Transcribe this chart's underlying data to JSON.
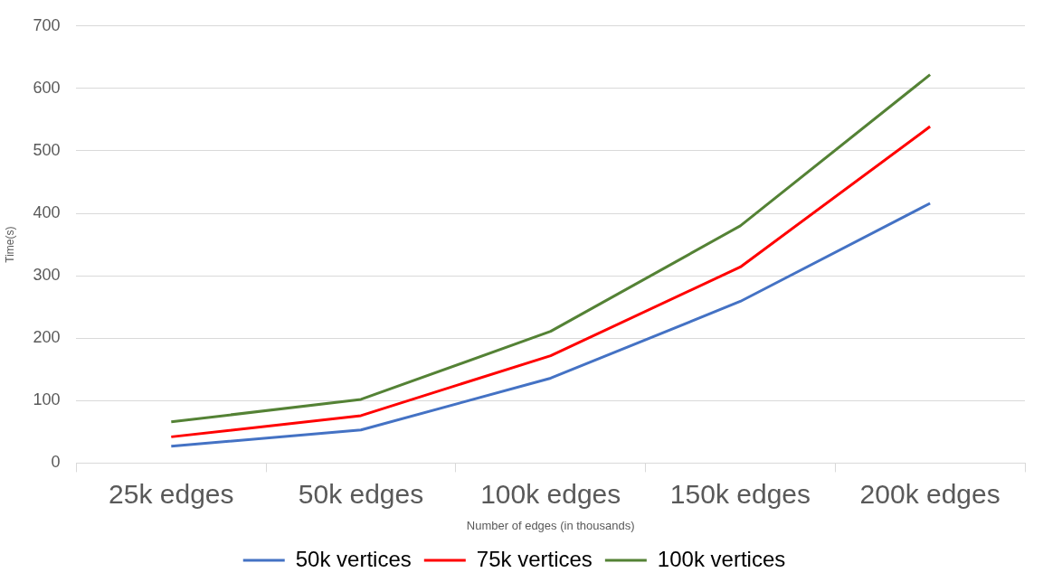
{
  "chart_data": {
    "type": "line",
    "xlabel": "Number of edges (in thousands)",
    "ylabel": "Time(s)",
    "categories": [
      "25k edges",
      "50k edges",
      "100k edges",
      "150k edges",
      "200k edges"
    ],
    "series": [
      {
        "name": "50k vertices",
        "color": "#4472c4",
        "values": [
          27,
          53,
          136,
          259,
          416
        ]
      },
      {
        "name": "75k vertices",
        "color": "#ff0000",
        "values": [
          42,
          76,
          172,
          314,
          539
        ]
      },
      {
        "name": "100k vertices",
        "color": "#548235",
        "values": [
          66,
          102,
          211,
          380,
          622
        ]
      }
    ],
    "ylim": [
      0,
      700
    ],
    "yticks": [
      0,
      100,
      200,
      300,
      400,
      500,
      600,
      700
    ],
    "grid": "y",
    "legend": "bottom"
  }
}
